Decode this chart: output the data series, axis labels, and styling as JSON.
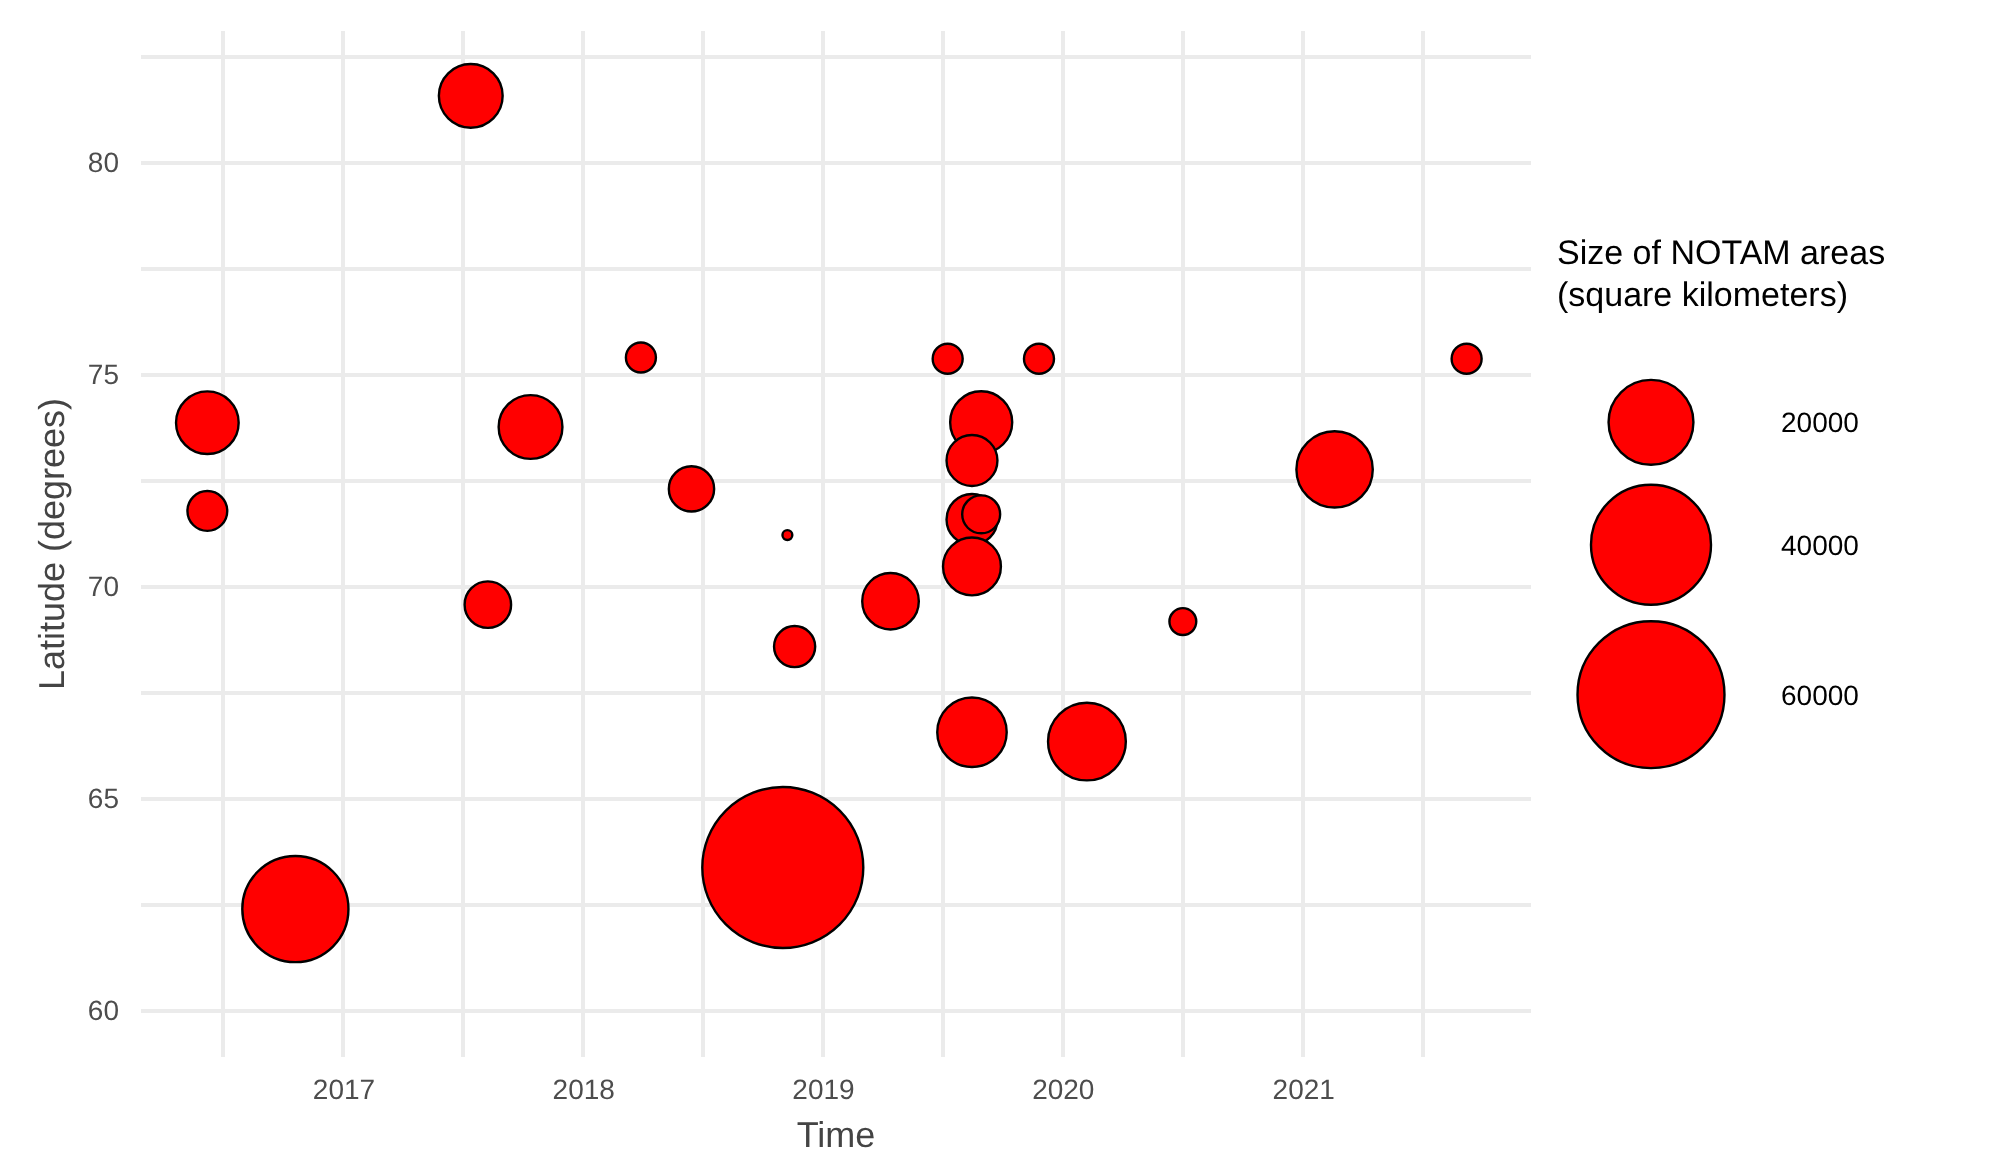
{
  "chart_data": {
    "type": "bubble",
    "xlabel": "Time",
    "ylabel": "Latitude (degrees)",
    "legend_title": "Size of NOTAM areas\n(square kilometers)",
    "x": [
      "2016-06-07",
      "2016-06-07",
      "2016-10-19",
      "2017-07-13",
      "2017-08-08",
      "2017-10-12",
      "2018-03-29",
      "2018-06-14",
      "2018-11-07",
      "2018-11-18",
      "2018-10-31",
      "2019-04-13",
      "2019-07-09",
      "2019-11-25",
      "2019-08-29",
      "2019-08-15",
      "2019-08-15",
      "2019-08-29",
      "2019-08-15",
      "2019-08-15",
      "2020-02-06",
      "2020-07-01",
      "2021-02-17",
      "2021-09-06"
    ],
    "values": [
      73.86,
      71.78,
      62.39,
      81.57,
      69.57,
      73.76,
      75.4,
      72.3,
      71.21,
      68.58,
      63.37,
      69.65,
      75.37,
      75.37,
      73.87,
      72.97,
      71.58,
      71.7,
      70.47,
      66.56,
      66.34,
      69.17,
      72.76,
      75.37
    ],
    "sizes": [
      10900,
      4400,
      31300,
      11300,
      6000,
      11300,
      2500,
      5700,
      270,
      4700,
      72000,
      8900,
      2500,
      2500,
      10700,
      7200,
      7200,
      4000,
      9300,
      13400,
      16800,
      2000,
      16200,
      2500
    ],
    "size_legend": [
      20000,
      40000,
      60000
    ],
    "color": "#ff0000",
    "xlim": [
      "2016-02-27",
      "2021-12-13"
    ],
    "xticks": [
      {
        "value": "2016-07-01",
        "label": null
      },
      {
        "value": "2017-01-01",
        "label": "2017"
      },
      {
        "value": "2017-07-01",
        "label": null
      },
      {
        "value": "2018-01-01",
        "label": "2018"
      },
      {
        "value": "2018-07-01",
        "label": null
      },
      {
        "value": "2019-01-01",
        "label": "2019"
      },
      {
        "value": "2019-07-01",
        "label": null
      },
      {
        "value": "2020-01-01",
        "label": "2020"
      },
      {
        "value": "2020-07-01",
        "label": null
      },
      {
        "value": "2021-01-01",
        "label": "2021"
      },
      {
        "value": "2021-07-01",
        "label": null
      }
    ],
    "ylim": [
      58.9,
      83.1
    ],
    "yticks": [
      60,
      {
        "value": 62.5,
        "label": null
      },
      65,
      {
        "value": 67.5,
        "label": null
      },
      70,
      {
        "value": 72.5,
        "label": null
      },
      75,
      {
        "value": 77.5,
        "label": null
      },
      80,
      {
        "value": 82.5,
        "label": null
      }
    ],
    "grid": true
  }
}
